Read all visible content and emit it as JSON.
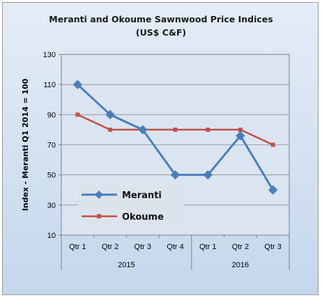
{
  "chart_data": {
    "type": "line",
    "title": "Meranti and Okoume Sawnwood Price Indices",
    "subtitle": "(US$ C&F)",
    "ylabel": "Index - Meranti  Q1 2014 = 100",
    "ylim": [
      10,
      130
    ],
    "yticks": [
      10,
      30,
      50,
      70,
      90,
      110,
      130
    ],
    "categories": [
      "Qtr 1",
      "Qtr 2",
      "Qtr 3",
      "Qtr 4",
      "Qtr 1",
      "Qtr 2",
      "Qtr 3"
    ],
    "groups": [
      {
        "label": "2015",
        "count": 4
      },
      {
        "label": "2016",
        "count": 3
      }
    ],
    "grid": true,
    "legend_position": "bottom-left",
    "series": [
      {
        "name": "Meranti",
        "color": "#4a7ebb",
        "marker": "diamond",
        "values": [
          110,
          90,
          80,
          50,
          50,
          76,
          40
        ]
      },
      {
        "name": "Okoume",
        "color": "#c0504d",
        "marker": "square",
        "values": [
          90,
          80,
          80,
          80,
          80,
          80,
          70
        ]
      }
    ]
  }
}
